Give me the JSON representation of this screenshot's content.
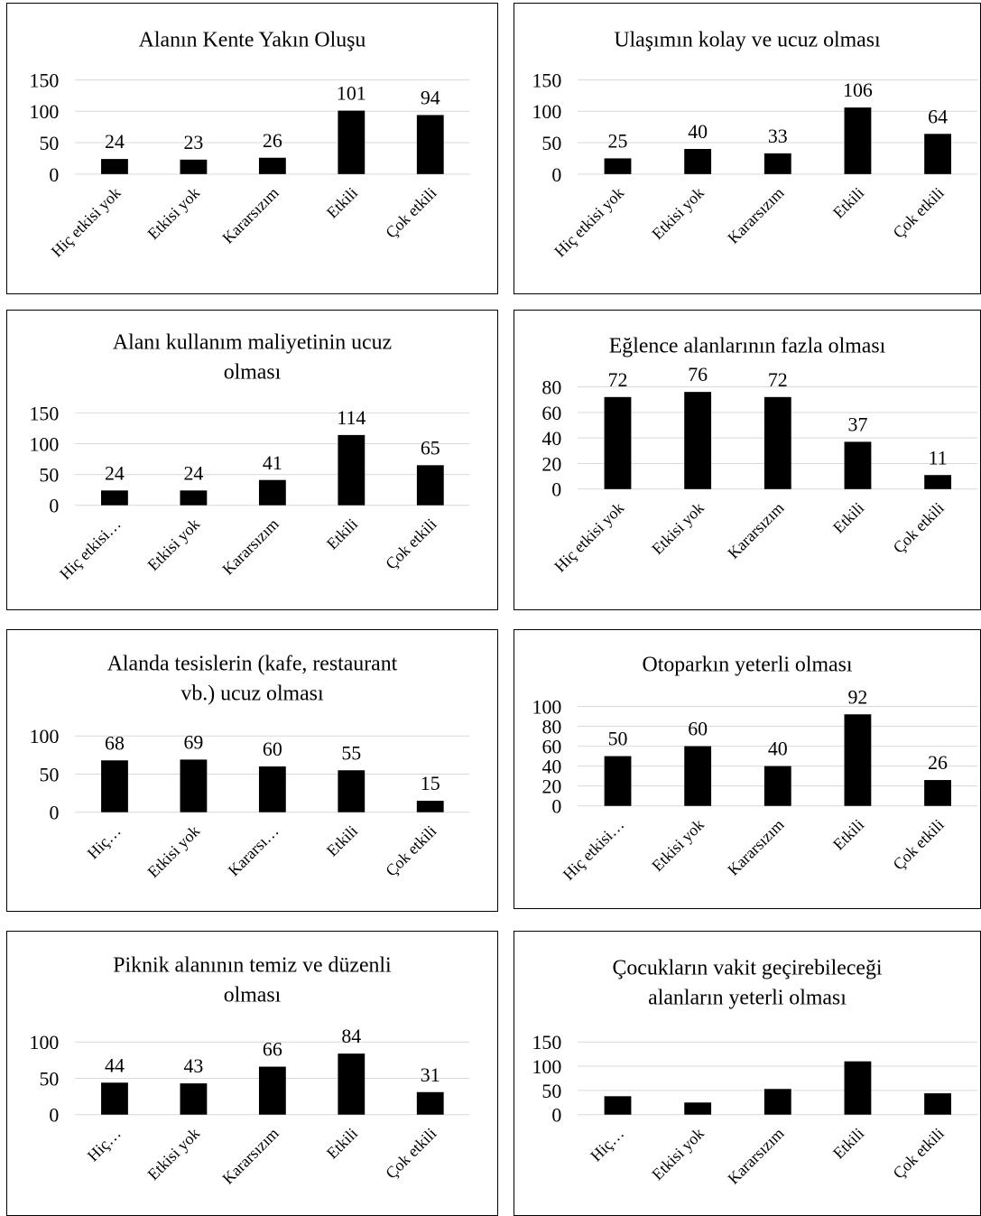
{
  "chart_data": [
    {
      "type": "bar",
      "title": [
        "Alanın Kente Yakın Oluşu"
      ],
      "categories": [
        "Hiç etkisi yok",
        "Etkisi yok",
        "Kararsızım",
        "Etkili",
        "Çok etkili"
      ],
      "values": [
        24,
        23,
        26,
        101,
        94
      ],
      "data_labels": [
        "24",
        "23",
        "26",
        "101",
        "94"
      ],
      "yticks": [
        "0",
        "50",
        "100",
        "150"
      ],
      "ylim": [
        0,
        150
      ],
      "grid": true,
      "legend": "none"
    },
    {
      "type": "bar",
      "title": [
        "Ulaşımın kolay ve ucuz olması"
      ],
      "categories": [
        "Hiç etkisi yok",
        "Etkisi yok",
        "Kararsızım",
        "Etkili",
        "Çok etkili"
      ],
      "values": [
        25,
        40,
        33,
        106,
        64
      ],
      "data_labels": [
        "25",
        "40",
        "33",
        "106",
        "64"
      ],
      "yticks": [
        "0",
        "50",
        "100",
        "150"
      ],
      "ylim": [
        0,
        150
      ],
      "grid": true,
      "legend": "none"
    },
    {
      "type": "bar",
      "title": [
        "Alanı kullanım maliyetinin ucuz",
        "olması"
      ],
      "categories": [
        "Hiç etkisi…",
        "Etkisi yok",
        "Kararsızım",
        "Etkili",
        "Çok etkili"
      ],
      "values": [
        24,
        24,
        41,
        114,
        65
      ],
      "data_labels": [
        "24",
        "24",
        "41",
        "114",
        "65"
      ],
      "yticks": [
        "0",
        "50",
        "100",
        "150"
      ],
      "ylim": [
        0,
        150
      ],
      "grid": true,
      "legend": "none"
    },
    {
      "type": "bar",
      "title": [
        "Eğlence alanlarının fazla olması"
      ],
      "categories": [
        "Hiç etkisi yok",
        "Etkisi yok",
        "Kararsızım",
        "Etkili",
        "Çok etkili"
      ],
      "values": [
        72,
        76,
        72,
        37,
        11
      ],
      "data_labels": [
        "72",
        "76",
        "72",
        "37",
        "11"
      ],
      "yticks": [
        "0",
        "20",
        "40",
        "60",
        "80"
      ],
      "ylim": [
        0,
        80
      ],
      "grid": true,
      "legend": "none"
    },
    {
      "type": "bar",
      "title": [
        "Alanda tesislerin (kafe, restaurant",
        "vb.) ucuz olması"
      ],
      "categories": [
        "Hiç…",
        "Etkisi yok",
        "Kararsı…",
        "Etkili",
        "Çok etkili"
      ],
      "values": [
        68,
        69,
        60,
        55,
        15
      ],
      "data_labels": [
        "68",
        "69",
        "60",
        "55",
        "15"
      ],
      "yticks": [
        "0",
        "50",
        "100"
      ],
      "ylim": [
        0,
        100
      ],
      "grid": true,
      "legend": "none"
    },
    {
      "type": "bar",
      "title": [
        "Otoparkın yeterli olması"
      ],
      "categories": [
        "Hiç etkisi…",
        "Etkisi yok",
        "Kararsızım",
        "Etkili",
        "Çok etkili"
      ],
      "values": [
        50,
        60,
        40,
        92,
        26
      ],
      "data_labels": [
        "50",
        "60",
        "40",
        "92",
        "26"
      ],
      "yticks": [
        "0",
        "20",
        "40",
        "60",
        "80",
        "100"
      ],
      "ylim": [
        0,
        100
      ],
      "grid": true,
      "legend": "none"
    },
    {
      "type": "bar",
      "title": [
        "Piknik alanının temiz ve düzenli",
        "olması"
      ],
      "categories": [
        "Hiç…",
        "Etkisi yok",
        "Kararsızım",
        "Etkili",
        "Çok etkili"
      ],
      "values": [
        44,
        43,
        66,
        84,
        31
      ],
      "data_labels": [
        "44",
        "43",
        "66",
        "84",
        "31"
      ],
      "yticks": [
        "0",
        "50",
        "100"
      ],
      "ylim": [
        0,
        100
      ],
      "grid": true,
      "legend": "none"
    },
    {
      "type": "bar",
      "title": [
        "Çocukların vakit geçirebileceği",
        "alanların yeterli olması"
      ],
      "categories": [
        "Hiç…",
        "Etkisi yok",
        "Kararsızım",
        "Etkili",
        "Çok etkili"
      ],
      "values": [
        38,
        25,
        53,
        110,
        44
      ],
      "data_labels": [],
      "yticks": [
        "0",
        "50",
        "100",
        "150"
      ],
      "ylim": [
        0,
        150
      ],
      "grid": true,
      "legend": "none"
    }
  ]
}
